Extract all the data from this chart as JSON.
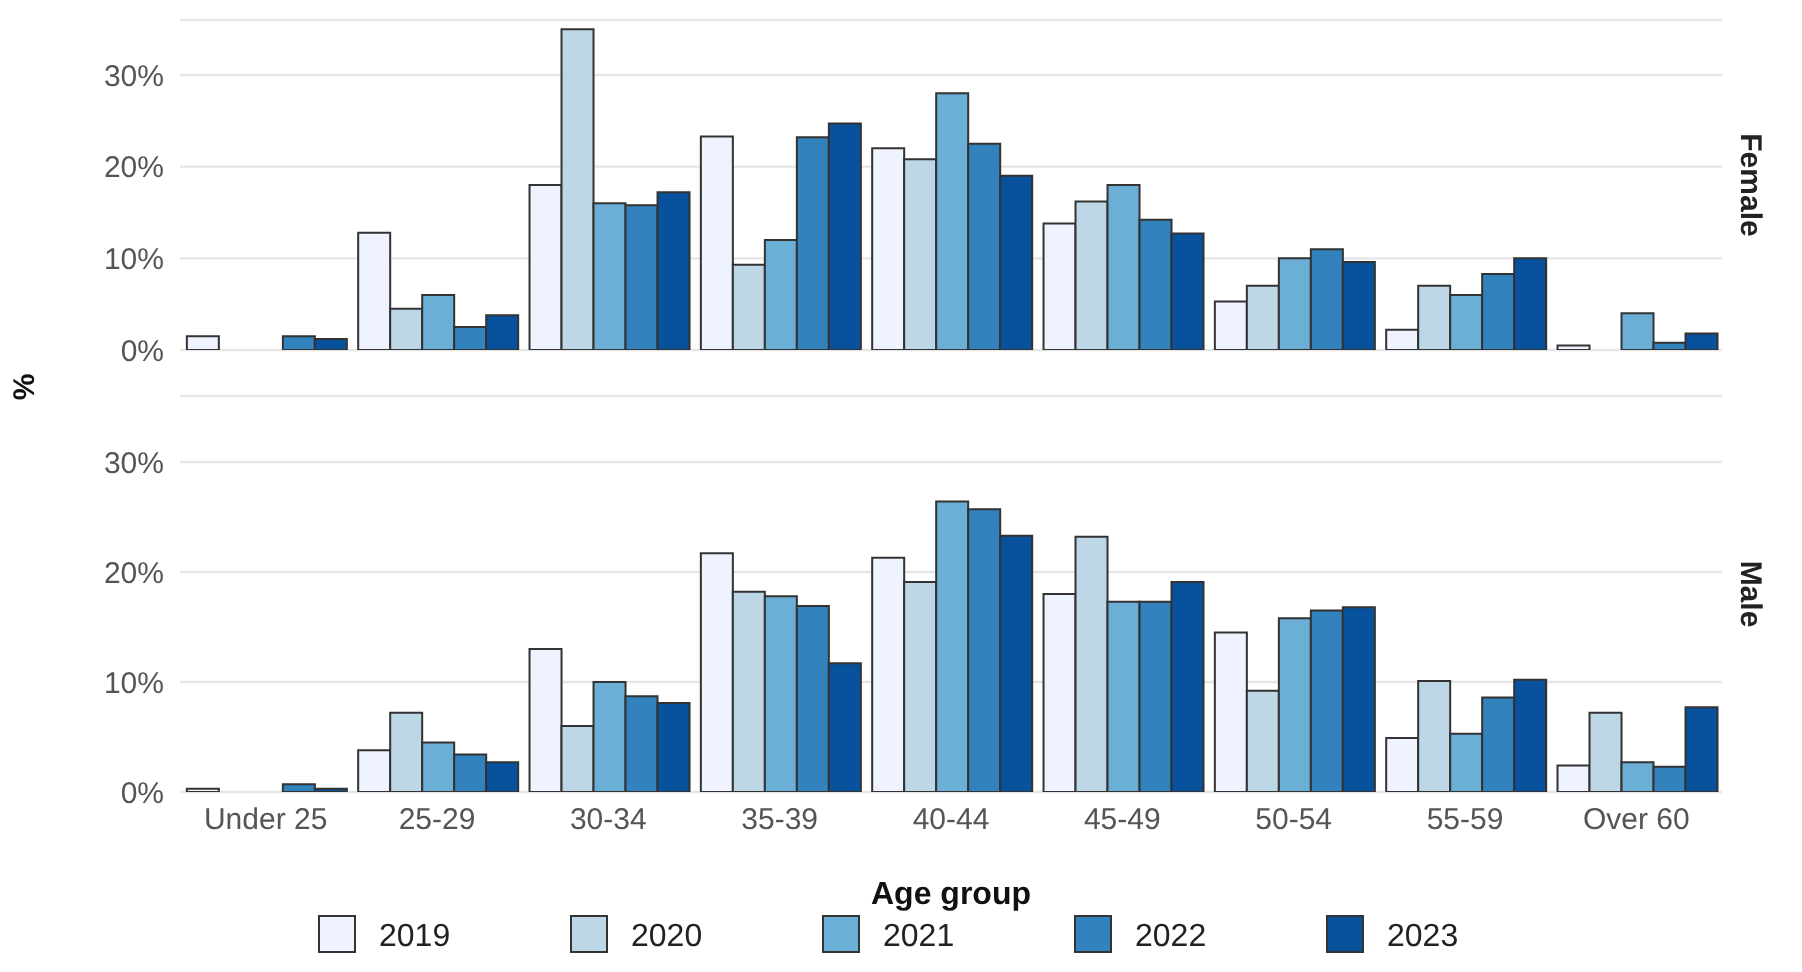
{
  "chart_data": [
    {
      "type": "bar",
      "title": "Female",
      "ylabel": "%",
      "categories": [
        null,
        null,
        null,
        null,
        null,
        null,
        null,
        null,
        null
      ],
      "ylim": [
        0,
        36
      ],
      "yticks": [
        {
          "value": 0,
          "label": "0%"
        },
        {
          "value": 10,
          "label": "10%"
        },
        {
          "value": 20,
          "label": "20%"
        },
        {
          "value": 30,
          "label": "30%"
        }
      ],
      "grid": "y",
      "tick_labels": "y",
      "legend": false,
      "series": [
        {
          "color": "#eff3ff",
          "values": [
            1.5,
            12.8,
            18,
            23.3,
            22,
            13.8,
            5.3,
            2.2,
            0.5
          ]
        },
        {
          "color": "#bdd7e7",
          "values": [
            0,
            4.5,
            35,
            9.3,
            20.8,
            16.2,
            7,
            7,
            0
          ]
        },
        {
          "color": "#6baed6",
          "values": [
            0,
            6,
            16,
            12,
            28,
            18,
            10,
            6,
            4
          ]
        },
        {
          "color": "#3182bd",
          "values": [
            1.5,
            2.5,
            15.8,
            23.2,
            22.5,
            14.2,
            11,
            8.3,
            0.8
          ]
        },
        {
          "color": "#08519c",
          "values": [
            1.2,
            3.8,
            17.2,
            24.7,
            19,
            12.7,
            9.6,
            10,
            1.8
          ]
        }
      ]
    },
    {
      "type": "bar",
      "title": "Male",
      "xlabel": "Age group",
      "categories": [
        "Under 25",
        "25-29",
        "30-34",
        "35-39",
        "40-44",
        "45-49",
        "50-54",
        "55-59",
        "Over 60"
      ],
      "ylim": [
        0,
        36
      ],
      "yticks": [
        {
          "value": 0,
          "label": "0%"
        },
        {
          "value": 10,
          "label": "10%"
        },
        {
          "value": 20,
          "label": "20%"
        },
        {
          "value": 30,
          "label": "30%"
        }
      ],
      "grid": "y",
      "legend": "bottom",
      "series": [
        {
          "name": "2019",
          "color": "#eff3ff",
          "values": [
            0.3,
            3.8,
            13,
            21.7,
            21.3,
            18,
            14.5,
            4.9,
            2.4
          ]
        },
        {
          "name": "2020",
          "color": "#bdd7e7",
          "values": [
            0,
            7.2,
            6,
            18.2,
            19.1,
            23.2,
            9.2,
            10.1,
            7.2
          ]
        },
        {
          "name": "2021",
          "color": "#6baed6",
          "values": [
            0,
            4.5,
            10,
            17.8,
            26.4,
            17.3,
            15.8,
            5.3,
            2.7
          ]
        },
        {
          "name": "2022",
          "color": "#3182bd",
          "values": [
            0.7,
            3.4,
            8.7,
            16.9,
            25.7,
            17.3,
            16.5,
            8.6,
            2.3
          ]
        },
        {
          "name": "2023",
          "color": "#08519c",
          "values": [
            0.3,
            2.7,
            8.1,
            11.7,
            23.3,
            19.1,
            16.8,
            10.2,
            7.7
          ]
        }
      ]
    }
  ]
}
